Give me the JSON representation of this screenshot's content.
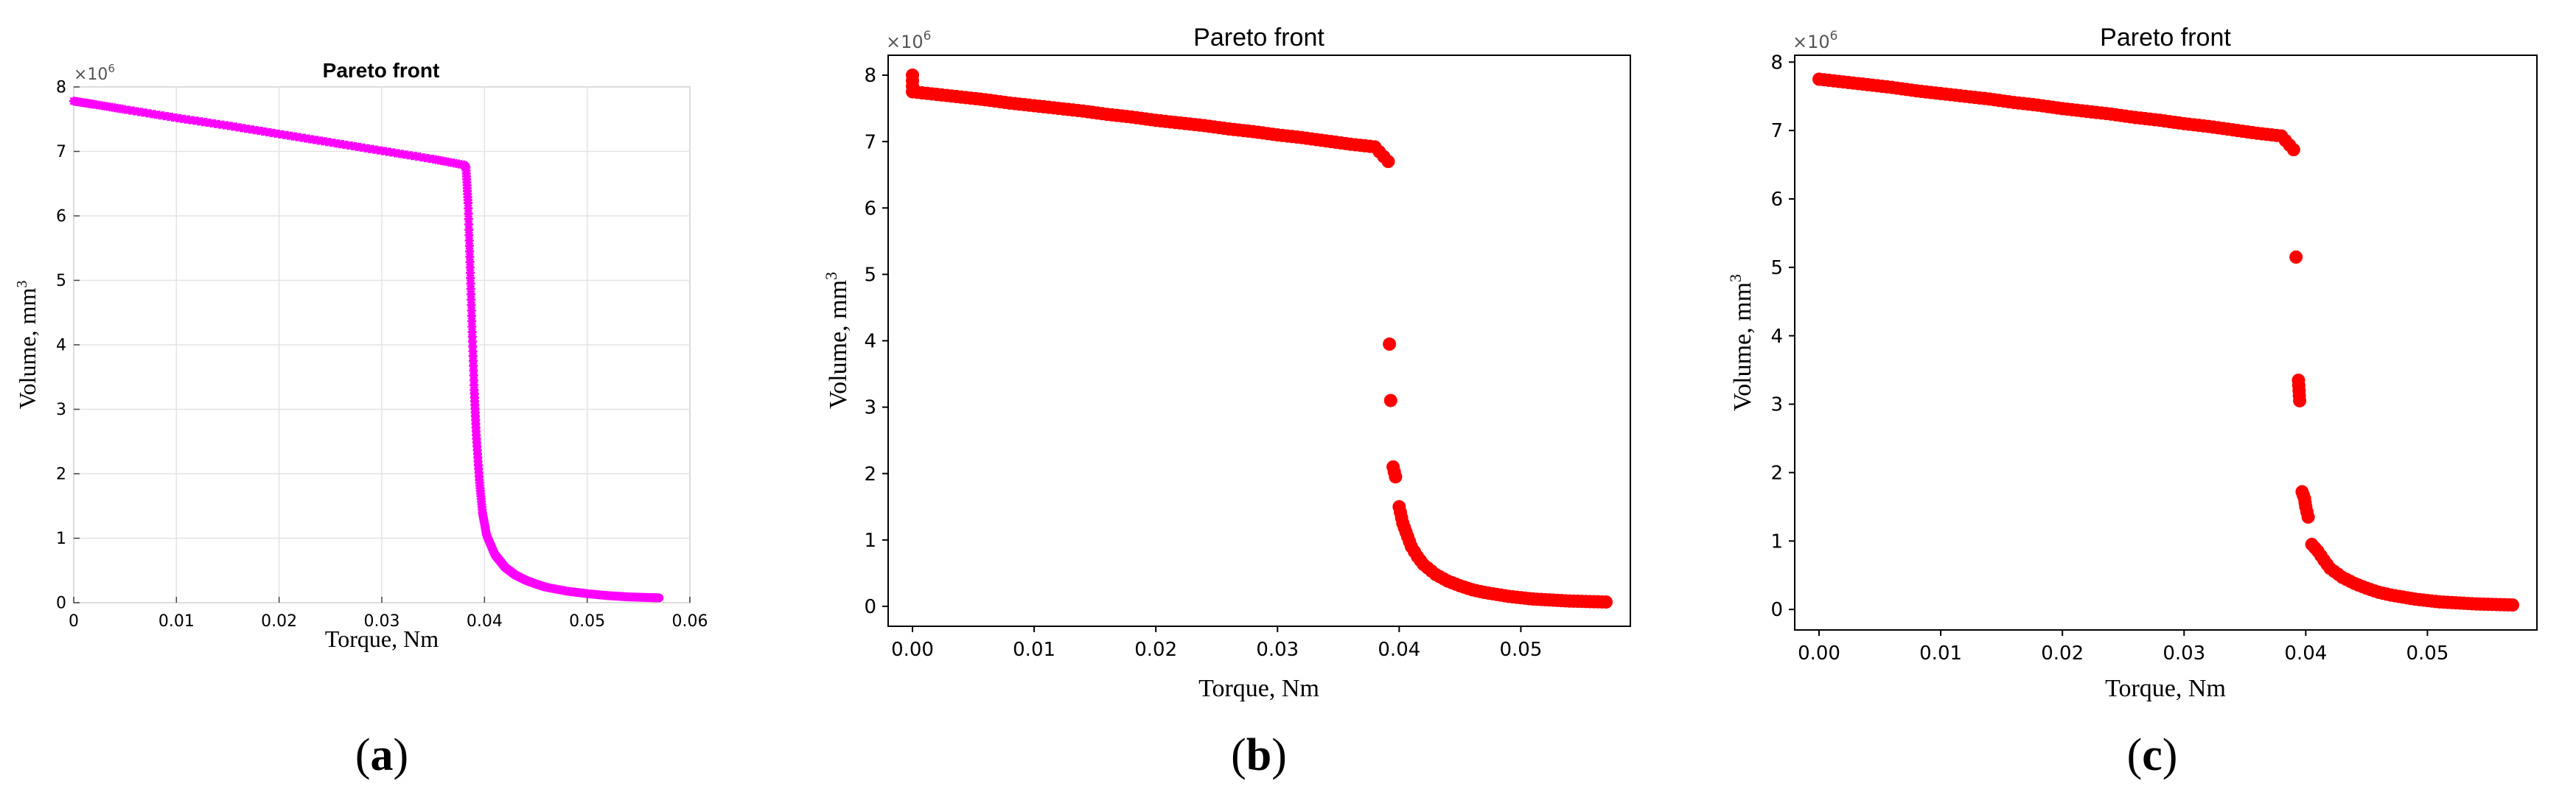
{
  "panels": [
    {
      "title": "Pareto front",
      "xlabel": "Torque, Nm",
      "ylabel": "Volume, mm",
      "ylabel_superscript": "3",
      "multiplier": "×10",
      "multiplier_exp": "6",
      "caption_letter": "a",
      "x_ticks": [
        "0",
        "0.01",
        "0.02",
        "0.03",
        "0.04",
        "0.05",
        "0.06"
      ],
      "y_ticks": [
        "0",
        "1",
        "2",
        "3",
        "4",
        "5",
        "6",
        "7",
        "8"
      ]
    },
    {
      "title": "Pareto front",
      "xlabel": "Torque, Nm",
      "ylabel": "Volume, mm",
      "ylabel_superscript": "3",
      "multiplier": "×10",
      "multiplier_exp": "6",
      "caption_letter": "b",
      "x_ticks": [
        "0.00",
        "0.01",
        "0.02",
        "0.03",
        "0.04",
        "0.05"
      ],
      "y_ticks": [
        "0",
        "1",
        "2",
        "3",
        "4",
        "5",
        "6",
        "7",
        "8"
      ]
    },
    {
      "title": "Pareto front",
      "xlabel": "Torque, Nm",
      "ylabel": "Volume, mm",
      "ylabel_superscript": "3",
      "multiplier": "×10",
      "multiplier_exp": "6",
      "caption_letter": "c",
      "x_ticks": [
        "0.00",
        "0.01",
        "0.02",
        "0.03",
        "0.04",
        "0.05"
      ],
      "y_ticks": [
        "0",
        "1",
        "2",
        "3",
        "4",
        "5",
        "6",
        "7",
        "8"
      ]
    }
  ],
  "chart_data": [
    {
      "type": "scatter",
      "title": "Pareto front",
      "xlabel": "Torque, Nm",
      "ylabel": "Volume, mm^3",
      "y_multiplier": "1e6",
      "xlim": [
        0,
        0.06
      ],
      "ylim": [
        0,
        8
      ],
      "grid": true,
      "marker_color": "#ff00ff",
      "marker": "asterisk",
      "points": [
        [
          0,
          7.78
        ],
        [
          0.002,
          7.73
        ],
        [
          0.005,
          7.65
        ],
        [
          0.01,
          7.52
        ],
        [
          0.015,
          7.4
        ],
        [
          0.02,
          7.27
        ],
        [
          0.025,
          7.14
        ],
        [
          0.03,
          7.01
        ],
        [
          0.035,
          6.88
        ],
        [
          0.038,
          6.79
        ],
        [
          0.0382,
          6.75
        ],
        [
          0.0384,
          6.2
        ],
        [
          0.0386,
          5.2
        ],
        [
          0.0388,
          4.2
        ],
        [
          0.039,
          3.3
        ],
        [
          0.0392,
          2.6
        ],
        [
          0.0395,
          1.9
        ],
        [
          0.0398,
          1.4
        ],
        [
          0.0402,
          1.05
        ],
        [
          0.041,
          0.75
        ],
        [
          0.042,
          0.55
        ],
        [
          0.043,
          0.43
        ],
        [
          0.044,
          0.35
        ],
        [
          0.045,
          0.29
        ],
        [
          0.046,
          0.24
        ],
        [
          0.048,
          0.18
        ],
        [
          0.05,
          0.14
        ],
        [
          0.052,
          0.11
        ],
        [
          0.054,
          0.09
        ],
        [
          0.056,
          0.08
        ],
        [
          0.057,
          0.075
        ]
      ]
    },
    {
      "type": "scatter",
      "title": "Pareto front",
      "xlabel": "Torque, Nm",
      "ylabel": "Volume, mm^3",
      "y_multiplier": "1e6",
      "xlim": [
        -0.002,
        0.059
      ],
      "ylim": [
        -0.3,
        8.3
      ],
      "grid": false,
      "marker_color": "#ff0000",
      "marker": "circle",
      "points": [
        [
          0,
          8.0
        ],
        [
          0,
          7.75
        ],
        [
          0.002,
          7.71
        ],
        [
          0.004,
          7.67
        ],
        [
          0.006,
          7.63
        ],
        [
          0.008,
          7.58
        ],
        [
          0.01,
          7.54
        ],
        [
          0.012,
          7.5
        ],
        [
          0.014,
          7.46
        ],
        [
          0.016,
          7.41
        ],
        [
          0.018,
          7.37
        ],
        [
          0.02,
          7.32
        ],
        [
          0.022,
          7.28
        ],
        [
          0.024,
          7.24
        ],
        [
          0.026,
          7.19
        ],
        [
          0.028,
          7.15
        ],
        [
          0.03,
          7.1
        ],
        [
          0.032,
          7.06
        ],
        [
          0.034,
          7.01
        ],
        [
          0.036,
          6.96
        ],
        [
          0.038,
          6.92
        ],
        [
          0.0391,
          6.7
        ],
        [
          0.0392,
          3.95
        ],
        [
          0.0393,
          3.1
        ],
        [
          0.0395,
          2.1
        ],
        [
          0.0397,
          1.95
        ],
        [
          0.04,
          1.5
        ],
        [
          0.0403,
          1.25
        ],
        [
          0.0407,
          1.05
        ],
        [
          0.041,
          0.9
        ],
        [
          0.0415,
          0.75
        ],
        [
          0.042,
          0.63
        ],
        [
          0.043,
          0.48
        ],
        [
          0.044,
          0.38
        ],
        [
          0.045,
          0.31
        ],
        [
          0.046,
          0.25
        ],
        [
          0.047,
          0.21
        ],
        [
          0.048,
          0.18
        ],
        [
          0.049,
          0.15
        ],
        [
          0.05,
          0.13
        ],
        [
          0.051,
          0.11
        ],
        [
          0.052,
          0.1
        ],
        [
          0.053,
          0.09
        ],
        [
          0.054,
          0.08
        ],
        [
          0.055,
          0.075
        ],
        [
          0.056,
          0.07
        ],
        [
          0.057,
          0.065
        ]
      ]
    },
    {
      "type": "scatter",
      "title": "Pareto front",
      "xlabel": "Torque, Nm",
      "ylabel": "Volume, mm^3",
      "y_multiplier": "1e6",
      "xlim": [
        -0.002,
        0.059
      ],
      "ylim": [
        -0.3,
        8.1
      ],
      "grid": false,
      "marker_color": "#ff0000",
      "marker": "circle",
      "points": [
        [
          0,
          7.75
        ],
        [
          0.002,
          7.71
        ],
        [
          0.004,
          7.67
        ],
        [
          0.006,
          7.63
        ],
        [
          0.008,
          7.58
        ],
        [
          0.01,
          7.54
        ],
        [
          0.012,
          7.5
        ],
        [
          0.014,
          7.46
        ],
        [
          0.016,
          7.41
        ],
        [
          0.018,
          7.37
        ],
        [
          0.02,
          7.32
        ],
        [
          0.022,
          7.28
        ],
        [
          0.024,
          7.24
        ],
        [
          0.026,
          7.19
        ],
        [
          0.028,
          7.15
        ],
        [
          0.03,
          7.1
        ],
        [
          0.032,
          7.06
        ],
        [
          0.034,
          7.01
        ],
        [
          0.036,
          6.96
        ],
        [
          0.038,
          6.92
        ],
        [
          0.039,
          6.72
        ],
        [
          0.0392,
          5.15
        ],
        [
          0.0394,
          3.35
        ],
        [
          0.0395,
          3.05
        ],
        [
          0.0397,
          1.72
        ],
        [
          0.0399,
          1.62
        ],
        [
          0.04,
          1.5
        ],
        [
          0.0402,
          1.35
        ],
        [
          0.0405,
          0.95
        ],
        [
          0.041,
          0.85
        ],
        [
          0.0415,
          0.72
        ],
        [
          0.042,
          0.6
        ],
        [
          0.043,
          0.47
        ],
        [
          0.044,
          0.38
        ],
        [
          0.045,
          0.31
        ],
        [
          0.046,
          0.25
        ],
        [
          0.047,
          0.21
        ],
        [
          0.048,
          0.18
        ],
        [
          0.049,
          0.15
        ],
        [
          0.05,
          0.13
        ],
        [
          0.051,
          0.11
        ],
        [
          0.052,
          0.1
        ],
        [
          0.053,
          0.09
        ],
        [
          0.054,
          0.08
        ],
        [
          0.055,
          0.075
        ],
        [
          0.056,
          0.07
        ],
        [
          0.057,
          0.065
        ]
      ]
    }
  ]
}
